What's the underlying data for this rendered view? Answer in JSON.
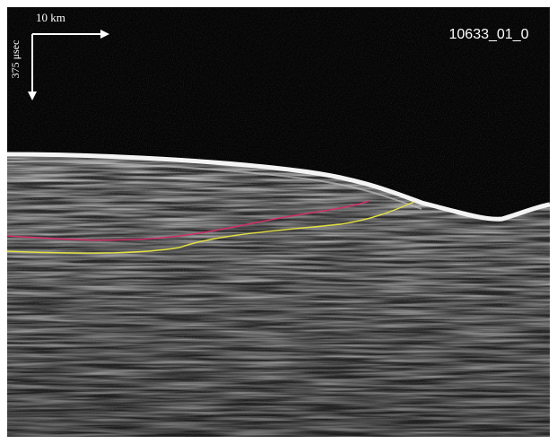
{
  "scale_bar": {
    "horizontal": "10 km",
    "vertical": "375 μsec"
  },
  "track_id": "10633_01_0"
}
